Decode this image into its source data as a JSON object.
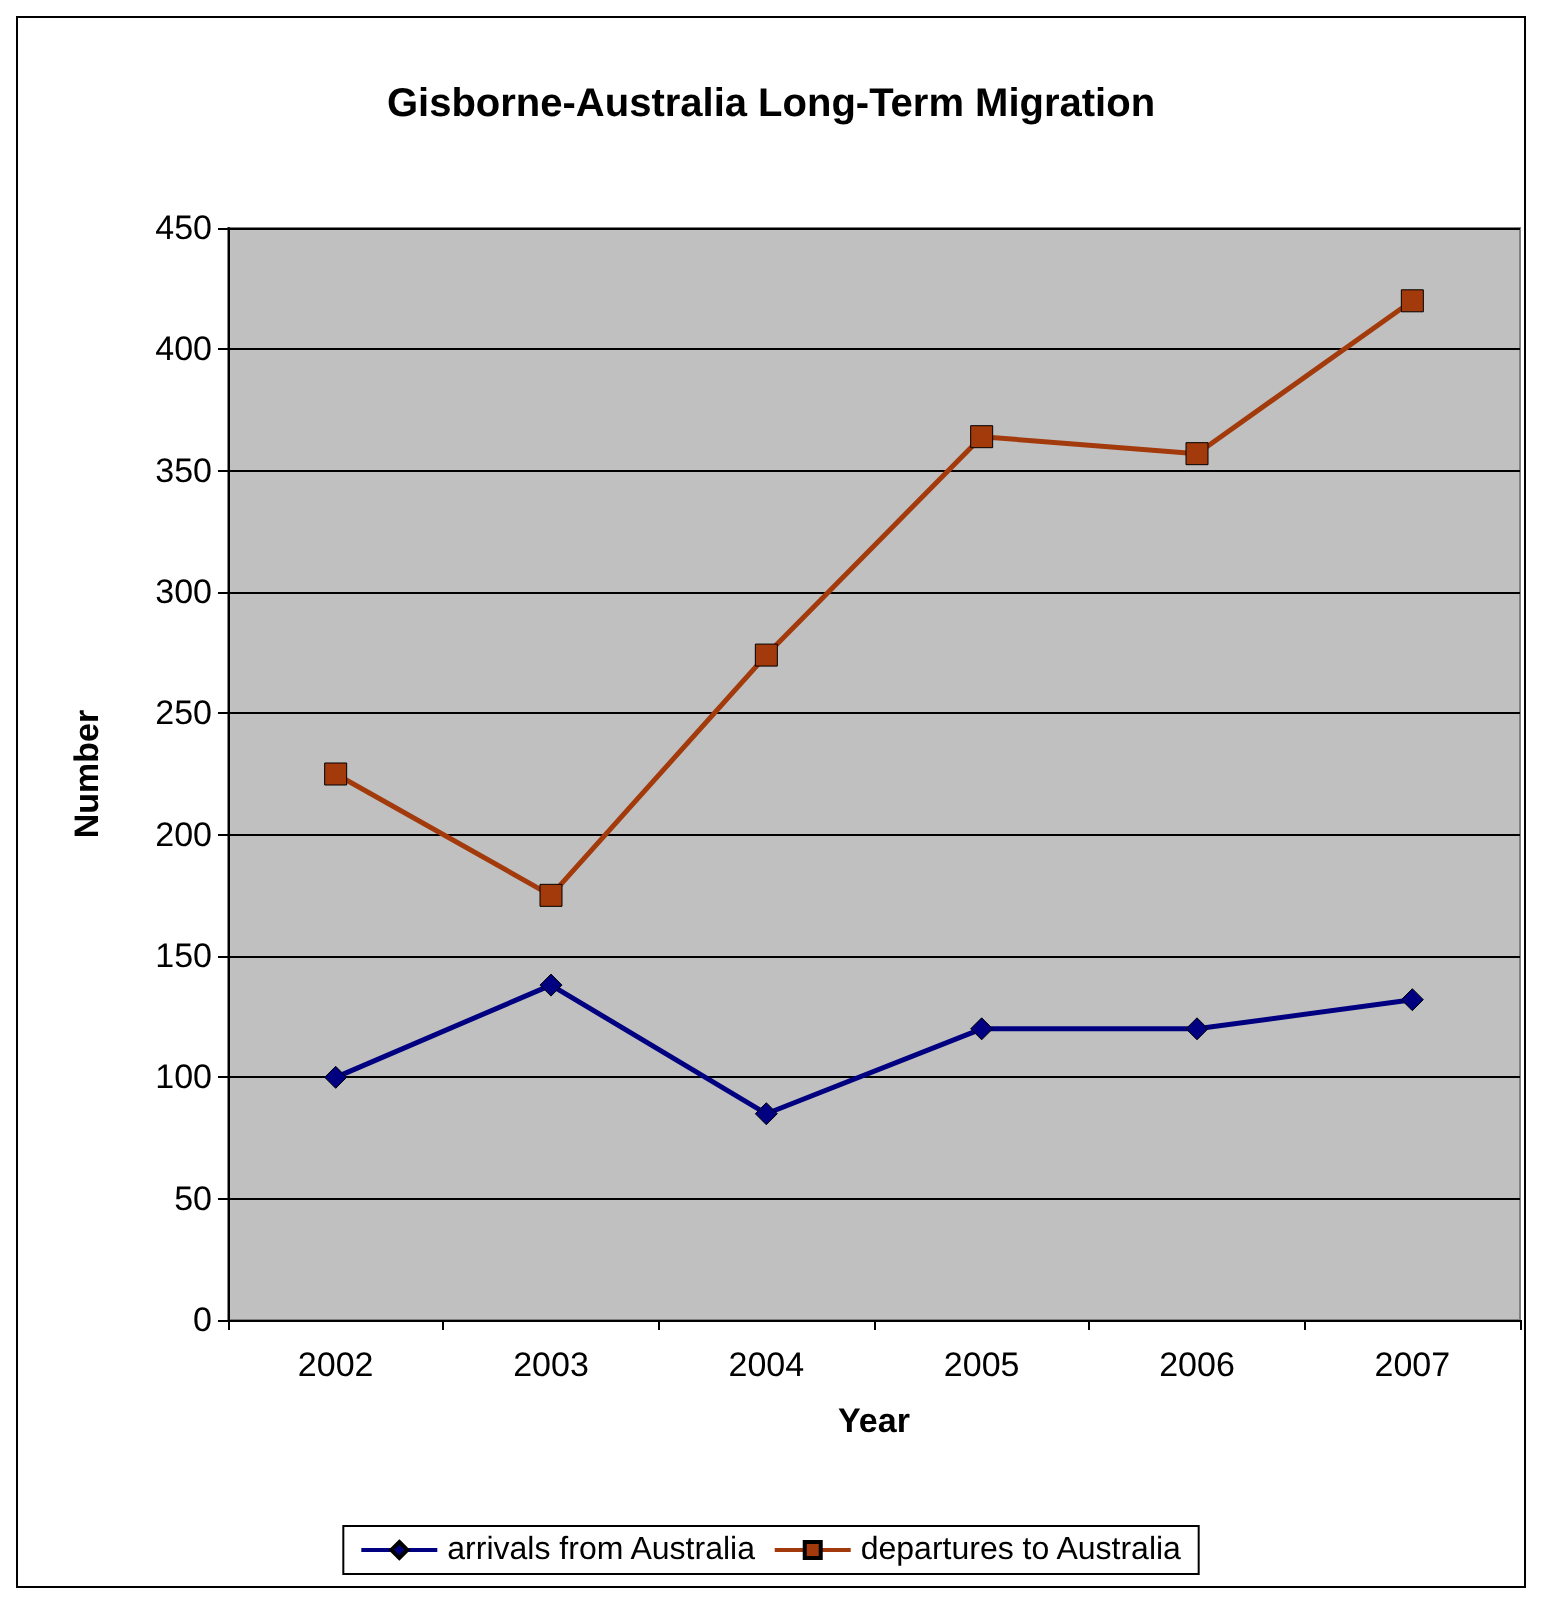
{
  "chart_data": {
    "type": "line",
    "title": "Gisborne-Australia Long-Term Migration",
    "xlabel": "Year",
    "ylabel": "Number",
    "categories": [
      "2002",
      "2003",
      "2004",
      "2005",
      "2006",
      "2007"
    ],
    "series": [
      {
        "name": "arrivals from Australia",
        "color": "#000080",
        "marker": "diamond",
        "values": [
          100,
          138,
          85,
          120,
          120,
          132
        ]
      },
      {
        "name": "departures to Australia",
        "color": "#a33a0c",
        "marker": "square",
        "values": [
          225,
          175,
          274,
          364,
          357,
          420
        ]
      }
    ],
    "ylim": [
      0,
      450
    ],
    "yticks": [
      0,
      50,
      100,
      150,
      200,
      250,
      300,
      350,
      400,
      450
    ],
    "grid": "y",
    "legend": "bottom",
    "line_style": "solid"
  }
}
